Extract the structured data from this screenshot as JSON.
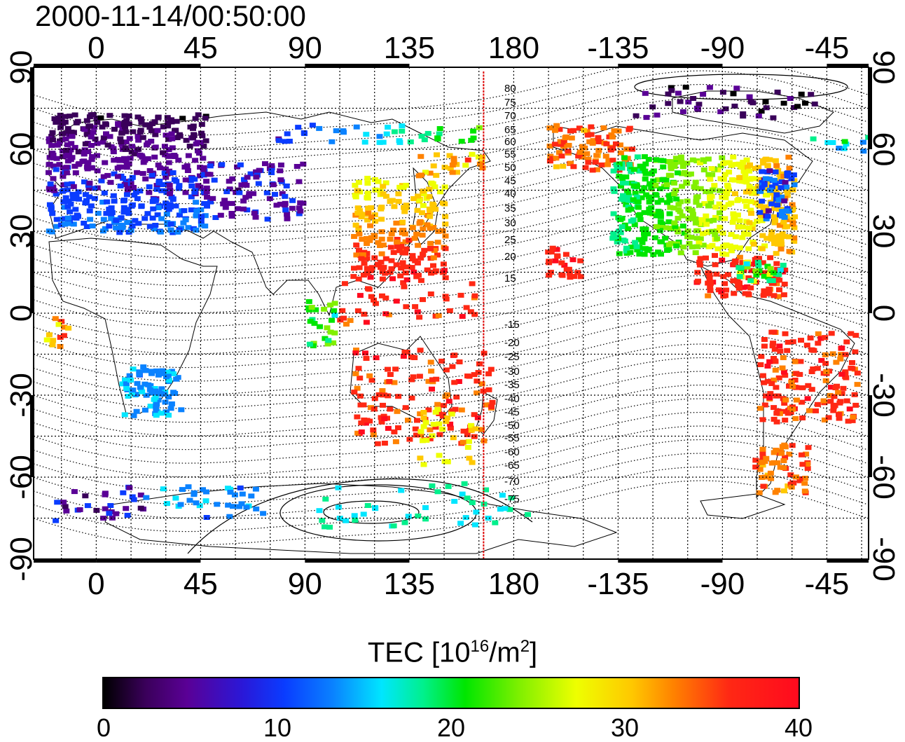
{
  "title": "2000-11-14/00:50:00",
  "axes": {
    "lon_ticks": [
      "0",
      "45",
      "90",
      "135",
      "180",
      "-135",
      "-90",
      "-45"
    ],
    "lat_ticks": [
      "90",
      "60",
      "30",
      "0",
      "-30",
      "-60",
      "-90"
    ]
  },
  "terminator_lon": 167,
  "contour_labels": [
    "80",
    "75",
    "70",
    "65",
    "60",
    "55",
    "50",
    "45",
    "40",
    "35",
    "30",
    "25",
    "20",
    "15",
    "-15",
    "-20",
    "-25",
    "-30",
    "-35",
    "-40",
    "-45",
    "-50",
    "-55",
    "-60",
    "-65",
    "-70",
    "-75"
  ],
  "colorbar": {
    "title_prefix": "TEC  [10",
    "title_exp1": "16",
    "title_mid": "/m",
    "title_exp2": "2",
    "title_suffix": "]",
    "ticks": [
      "0",
      "10",
      "20",
      "30",
      "40"
    ]
  },
  "colors": {
    "terminator": "#dd0000",
    "scale": [
      "#000000",
      "#5a0096",
      "#0a3cff",
      "#00e6ff",
      "#00e600",
      "#eeff00",
      "#ff8200",
      "#ff0a1e"
    ]
  }
}
